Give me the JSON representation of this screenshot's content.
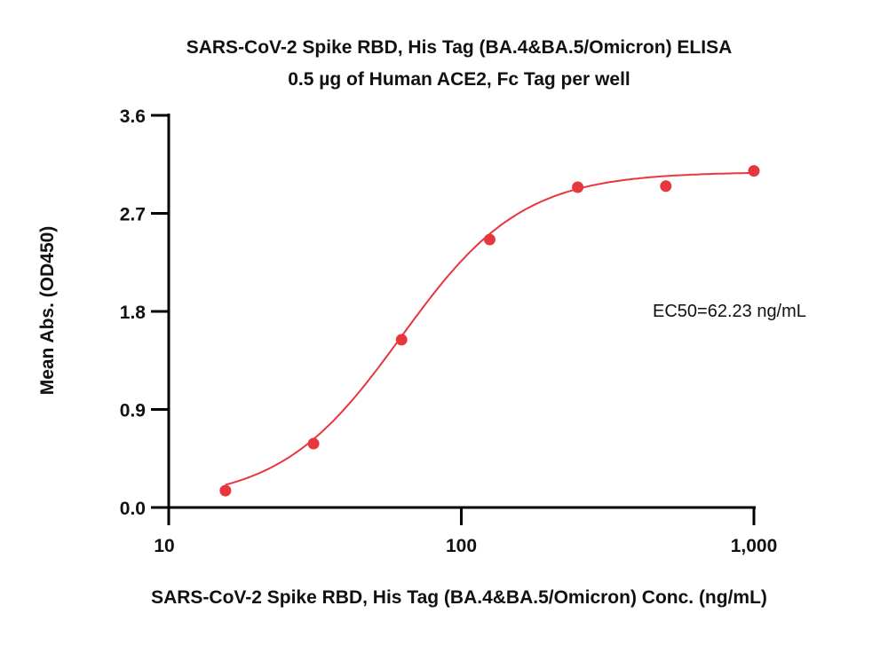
{
  "chart_data": {
    "type": "scatter",
    "title": "SARS-CoV-2 Spike RBD, His Tag (BA.4&BA.5/Omicron) ELISA",
    "subtitle": "0.5 µg of Human ACE2, Fc Tag per well",
    "xlabel": "SARS-CoV-2 Spike RBD, His Tag (BA.4&BA.5/Omicron) Conc. (ng/mL)",
    "ylabel": "Mean Abs. (OD450)",
    "xscale": "log",
    "xlim": [
      10,
      1000
    ],
    "ylim": [
      0,
      3.6
    ],
    "xticks": [
      10,
      100,
      1000
    ],
    "xtick_labels": [
      "10",
      "100",
      "1,000"
    ],
    "yticks": [
      0,
      0.9,
      1.8,
      2.7,
      3.6
    ],
    "ytick_labels": [
      "0.0",
      "0.9",
      "1.8",
      "2.7",
      "3.6"
    ],
    "grid": false,
    "color": "#e8363f",
    "x": [
      15.625,
      31.25,
      62.5,
      125,
      250,
      500,
      1000
    ],
    "y": [
      0.155,
      0.586,
      1.54,
      2.46,
      2.94,
      2.95,
      3.09
    ],
    "fit": {
      "model": "4PL",
      "bottom": 0.05,
      "top": 3.08,
      "ec50": 62.23,
      "hill": 2.1
    },
    "annotation": "EC50=62.23 ng/mL"
  }
}
